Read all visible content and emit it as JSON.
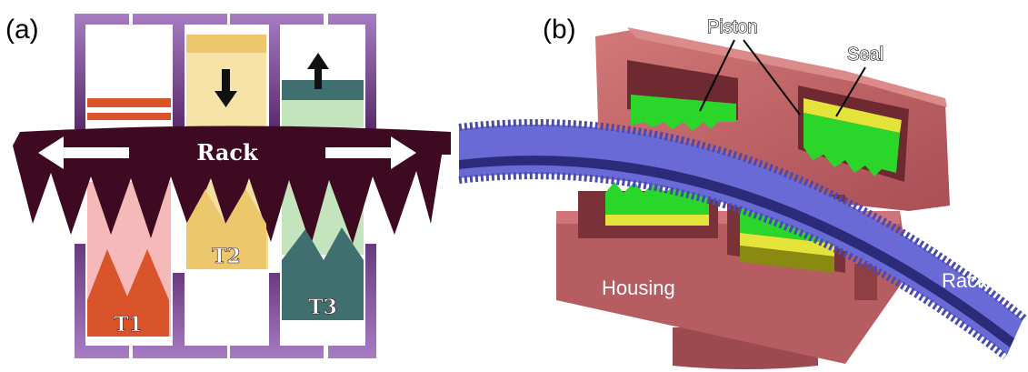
{
  "panels": {
    "a": {
      "label": "(a)",
      "rack_label": "Rack",
      "teeth": [
        {
          "name": "t1",
          "label": "T1",
          "color": "#d9542b",
          "bg": "#f6b9b9"
        },
        {
          "name": "t2",
          "label": "T2",
          "color": "#ecc76b",
          "bg": "#f3dfa0"
        },
        {
          "name": "t3",
          "label": "T3",
          "color": "#3f6f6e",
          "bg": "#bfe0b8"
        }
      ],
      "colors": {
        "rack": "#3d0a22",
        "frame": "#8e5fae",
        "frame_dark": "#4a1f57"
      }
    },
    "b": {
      "label": "(b)",
      "callouts": {
        "piston": "Piston",
        "seal": "Seal",
        "housing": "Housing",
        "rack": "Rack"
      },
      "colors": {
        "housing": "#c66b6b",
        "housing_dark": "#8f3f44",
        "piston": "#2bd62b",
        "seal": "#e4e33a",
        "rack": "#6a6ad6",
        "rack_dark": "#2b2b7a"
      }
    }
  }
}
